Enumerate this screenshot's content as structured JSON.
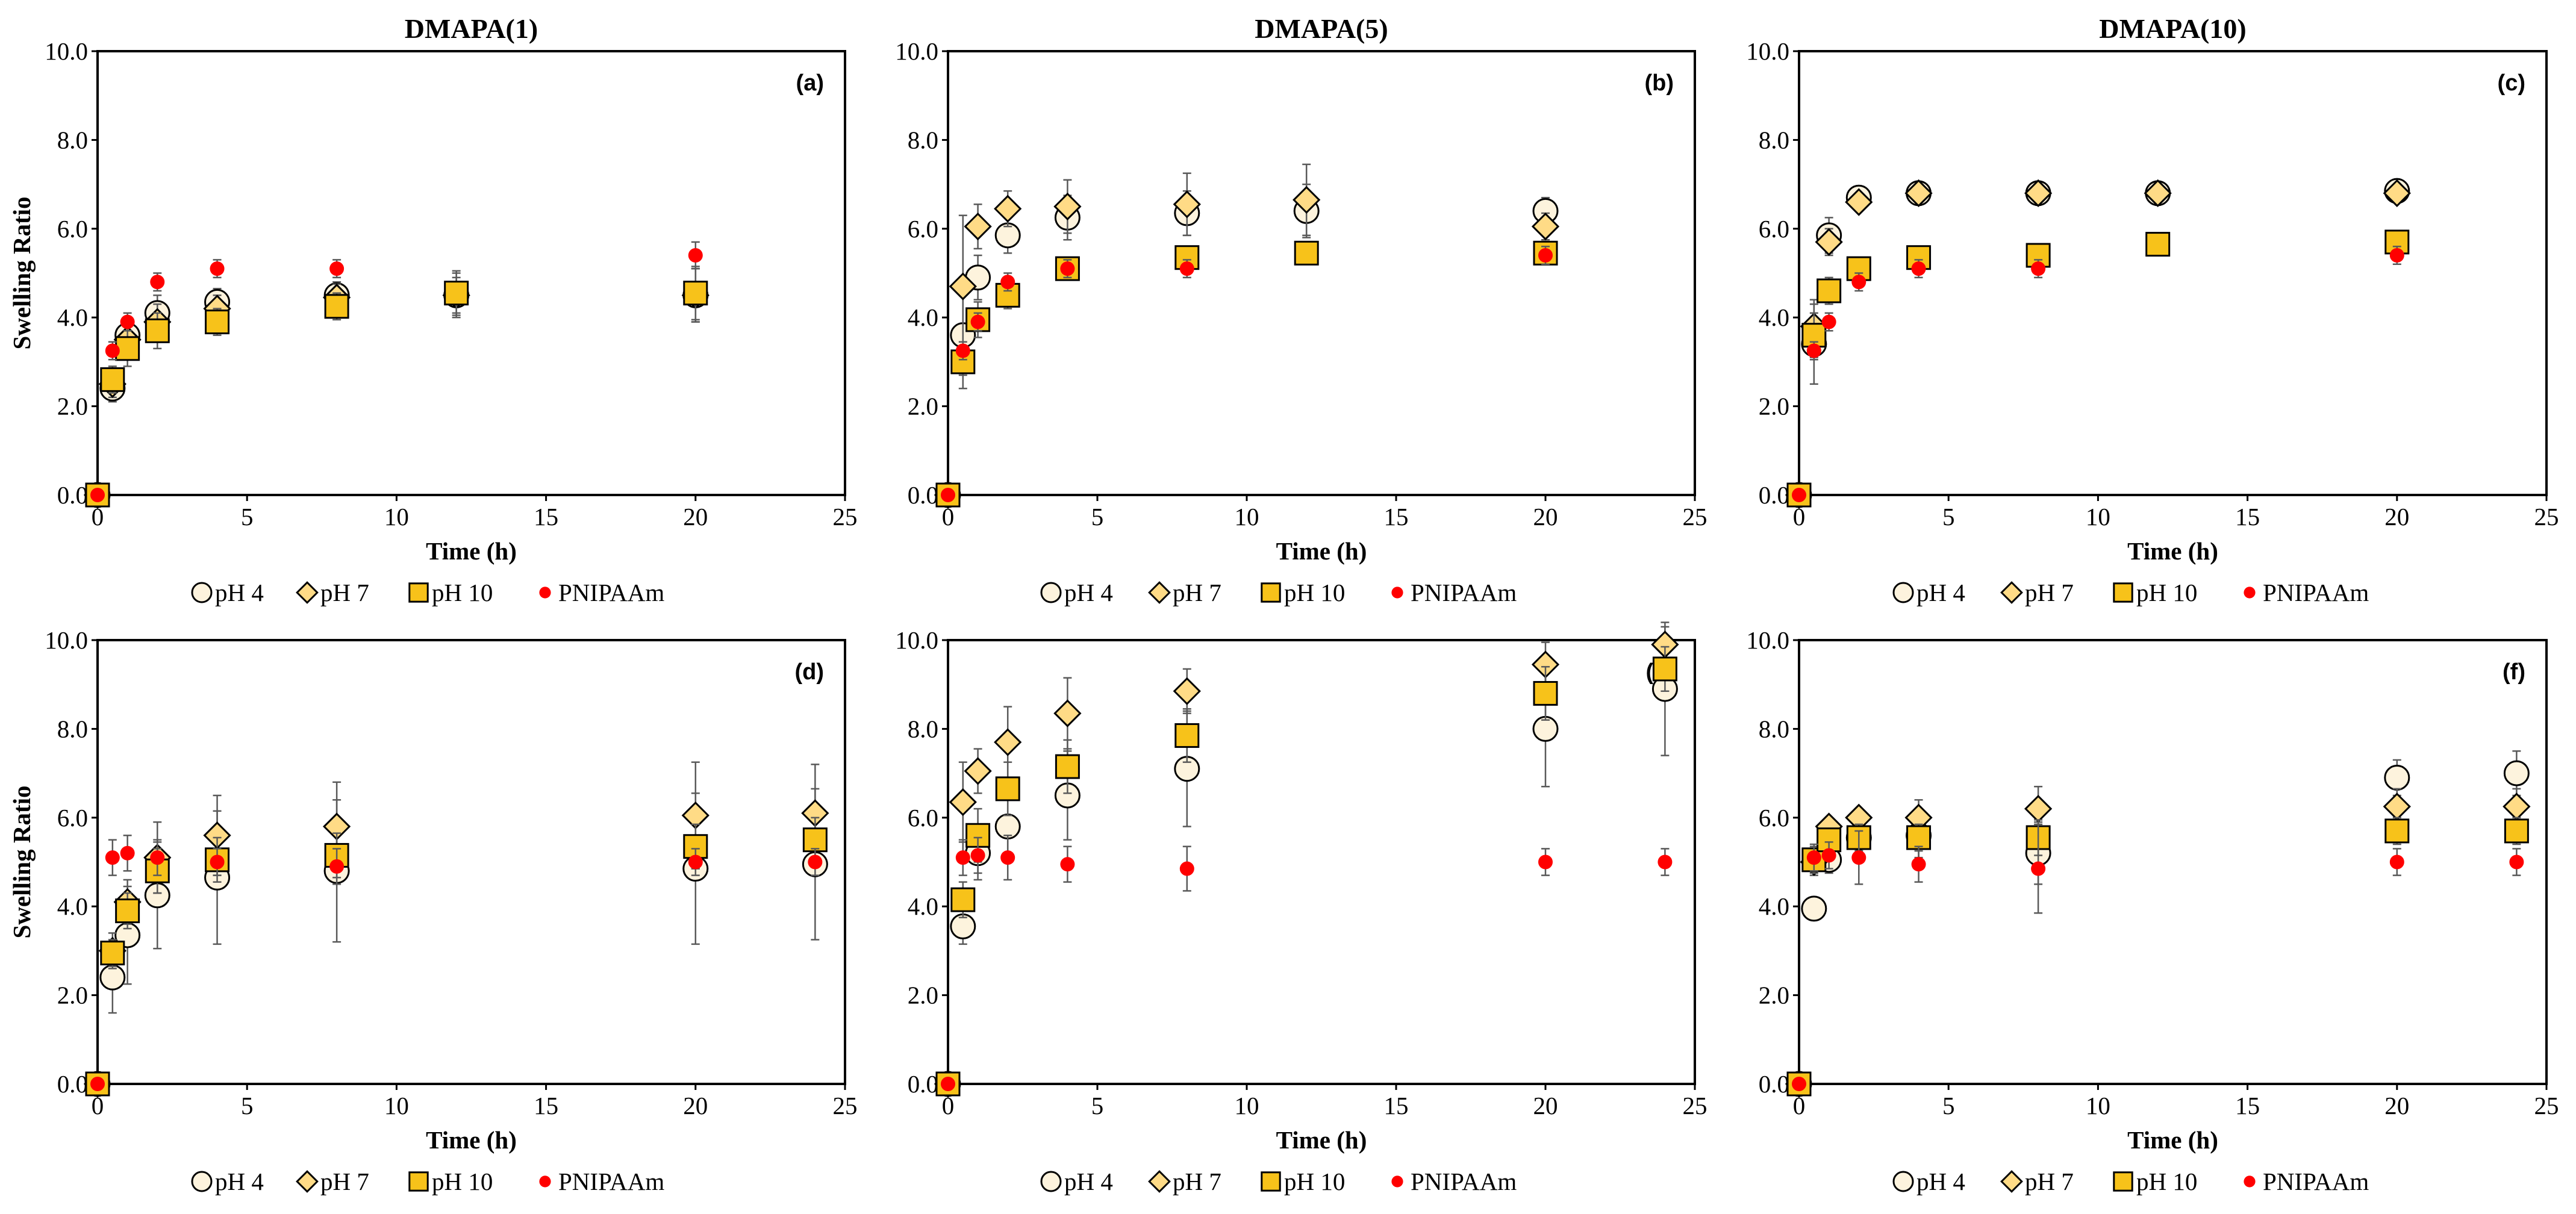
{
  "colors": {
    "pH 4": "#FDF3DD",
    "pH 7": "#FFDB86",
    "pH 10": "#F7C21A",
    "PNIPAAm": "#FF0000",
    "error_bar": "#595959",
    "axis": "#000000"
  },
  "chart_data": [
    {
      "type": "scatter",
      "panel_label": "(a)",
      "title": "DMAPA(1)",
      "xlabel": "Time (h)",
      "ylabel": "Swelling Ratio",
      "xlim": [
        0,
        25
      ],
      "ylim": [
        0,
        10
      ],
      "xticks": [
        "0",
        "5",
        "10",
        "15",
        "20",
        "25"
      ],
      "yticks": [
        "0.0",
        "2.0",
        "4.0",
        "6.0",
        "8.0",
        "10.0"
      ],
      "legend": [
        "pH 4",
        "pH 7",
        "pH 10",
        "PNIPAAm"
      ],
      "series": [
        {
          "name": "pH 4",
          "marker": "circle",
          "x": [
            0,
            0.5,
            1,
            2,
            4,
            8,
            12,
            20
          ],
          "y": [
            0,
            2.4,
            3.6,
            4.1,
            4.35,
            4.5,
            4.5,
            4.5
          ],
          "err": [
            0,
            0.3,
            0.4,
            0.4,
            0.3,
            0.3,
            0.5,
            0.6
          ]
        },
        {
          "name": "pH 7",
          "marker": "diamond",
          "x": [
            0,
            0.5,
            1,
            2,
            4,
            8,
            12,
            20
          ],
          "y": [
            0,
            2.5,
            3.5,
            3.9,
            4.2,
            4.45,
            4.5,
            4.5
          ],
          "err": [
            0,
            0.3,
            0.4,
            0.4,
            0.3,
            0.3,
            0.4,
            0.6
          ]
        },
        {
          "name": "pH 10",
          "marker": "square",
          "x": [
            0,
            0.5,
            1,
            2,
            4,
            8,
            12,
            20
          ],
          "y": [
            0,
            2.6,
            3.3,
            3.7,
            3.9,
            4.25,
            4.55,
            4.55
          ],
          "err": [
            0,
            0.3,
            0.4,
            0.4,
            0.3,
            0.3,
            0.5,
            0.6
          ]
        },
        {
          "name": "PNIPAAm",
          "marker": "dot",
          "x": [
            0,
            0.5,
            1,
            2,
            4,
            8,
            20
          ],
          "y": [
            0,
            3.25,
            3.9,
            4.8,
            5.1,
            5.1,
            5.4
          ],
          "err": [
            0,
            0.2,
            0.2,
            0.2,
            0.2,
            0.2,
            0.3
          ]
        }
      ]
    },
    {
      "type": "scatter",
      "panel_label": "(b)",
      "title": "DMAPA(5)",
      "xlabel": "Time (h)",
      "ylabel": "",
      "xlim": [
        0,
        25
      ],
      "ylim": [
        0,
        10
      ],
      "xticks": [
        "0",
        "5",
        "10",
        "15",
        "20",
        "25"
      ],
      "yticks": [
        "0.0",
        "2.0",
        "4.0",
        "6.0",
        "8.0",
        "10.0"
      ],
      "legend": [
        "pH 4",
        "pH 7",
        "pH 10",
        "PNIPAAm"
      ],
      "series": [
        {
          "name": "pH 4",
          "marker": "circle",
          "x": [
            0,
            0.5,
            1,
            2,
            4,
            8,
            12,
            20
          ],
          "y": [
            0,
            3.6,
            4.9,
            5.85,
            6.25,
            6.35,
            6.4,
            6.4
          ],
          "err": [
            0,
            1.2,
            0.5,
            0.4,
            0.5,
            0.5,
            0.6,
            0.3
          ]
        },
        {
          "name": "pH 7",
          "marker": "diamond",
          "x": [
            0,
            0.5,
            1,
            2,
            4,
            8,
            12,
            20
          ],
          "y": [
            0,
            4.7,
            6.05,
            6.45,
            6.5,
            6.55,
            6.65,
            6.05
          ],
          "err": [
            0,
            1.6,
            0.5,
            0.4,
            0.6,
            0.7,
            0.8,
            0.3
          ]
        },
        {
          "name": "pH 10",
          "marker": "square",
          "x": [
            0,
            0.5,
            1,
            2,
            4,
            8,
            12,
            20
          ],
          "y": [
            0,
            3.0,
            3.95,
            4.5,
            5.1,
            5.35,
            5.45,
            5.45
          ],
          "err": [
            0,
            0.3,
            0.4,
            0.3,
            0.2,
            0.2,
            0.2,
            0.2
          ]
        },
        {
          "name": "PNIPAAm",
          "marker": "dot",
          "x": [
            0,
            0.5,
            1,
            2,
            4,
            8,
            20
          ],
          "y": [
            0,
            3.25,
            3.9,
            4.8,
            5.1,
            5.1,
            5.4
          ],
          "err": [
            0,
            0.2,
            0.2,
            0.2,
            0.2,
            0.2,
            0.2
          ]
        }
      ]
    },
    {
      "type": "scatter",
      "panel_label": "(c)",
      "title": "DMAPA(10)",
      "xlabel": "Time (h)",
      "ylabel": "",
      "xlim": [
        0,
        25
      ],
      "ylim": [
        0,
        10
      ],
      "xticks": [
        "0",
        "5",
        "10",
        "15",
        "20",
        "25"
      ],
      "yticks": [
        "0.0",
        "2.0",
        "4.0",
        "6.0",
        "8.0",
        "10.0"
      ],
      "legend": [
        "pH 4",
        "pH 7",
        "pH 10",
        "PNIPAAm"
      ],
      "series": [
        {
          "name": "pH 4",
          "marker": "circle",
          "x": [
            0,
            0.5,
            1,
            2,
            4,
            8,
            12,
            20
          ],
          "y": [
            0,
            3.4,
            5.85,
            6.7,
            6.8,
            6.8,
            6.8,
            6.85
          ],
          "err": [
            0,
            0.9,
            0.4,
            0.2,
            0.1,
            0.1,
            0.1,
            0.1
          ]
        },
        {
          "name": "pH 7",
          "marker": "diamond",
          "x": [
            0,
            0.5,
            1,
            2,
            4,
            8,
            12,
            20
          ],
          "y": [
            0,
            3.8,
            5.7,
            6.6,
            6.8,
            6.8,
            6.8,
            6.8
          ],
          "err": [
            0,
            0.6,
            0.3,
            0.2,
            0.1,
            0.1,
            0.1,
            0.1
          ]
        },
        {
          "name": "pH 10",
          "marker": "square",
          "x": [
            0,
            0.5,
            1,
            2,
            4,
            8,
            12,
            20
          ],
          "y": [
            0,
            3.6,
            4.6,
            5.1,
            5.35,
            5.4,
            5.65,
            5.7
          ],
          "err": [
            0,
            0.5,
            0.3,
            0.2,
            0.1,
            0.1,
            0.1,
            0.1
          ]
        },
        {
          "name": "PNIPAAm",
          "marker": "dot",
          "x": [
            0,
            0.5,
            1,
            2,
            4,
            8,
            20
          ],
          "y": [
            0,
            3.25,
            3.9,
            4.8,
            5.1,
            5.1,
            5.4
          ],
          "err": [
            0,
            0.2,
            0.2,
            0.2,
            0.2,
            0.2,
            0.2
          ]
        }
      ]
    },
    {
      "type": "scatter",
      "panel_label": "(d)",
      "title": "",
      "xlabel": "Time (h)",
      "ylabel": "Swelling Ratio",
      "xlim": [
        0,
        25
      ],
      "ylim": [
        0,
        10
      ],
      "xticks": [
        "0",
        "5",
        "10",
        "15",
        "20",
        "25"
      ],
      "yticks": [
        "0.0",
        "2.0",
        "4.0",
        "6.0",
        "8.0",
        "10.0"
      ],
      "legend": [
        "pH 4",
        "pH 7",
        "pH 10",
        "PNIPAAm"
      ],
      "series": [
        {
          "name": "pH 4",
          "marker": "circle",
          "x": [
            0,
            0.5,
            1,
            2,
            4,
            8,
            20,
            24
          ],
          "y": [
            0,
            2.4,
            3.35,
            4.25,
            4.65,
            4.8,
            4.85,
            4.95
          ],
          "err": [
            0,
            0.8,
            1.1,
            1.2,
            1.5,
            1.6,
            1.7,
            1.7
          ]
        },
        {
          "name": "pH 7",
          "marker": "diamond",
          "x": [
            0,
            0.5,
            1,
            2,
            4,
            8,
            20,
            24
          ],
          "y": [
            0,
            3.0,
            4.1,
            5.1,
            5.6,
            5.8,
            6.05,
            6.1
          ],
          "err": [
            0,
            0.4,
            0.5,
            0.8,
            0.9,
            1.0,
            1.2,
            1.1
          ]
        },
        {
          "name": "pH 10",
          "marker": "square",
          "x": [
            0,
            0.5,
            1,
            2,
            4,
            8,
            20,
            24
          ],
          "y": [
            0,
            2.95,
            3.9,
            4.8,
            5.05,
            5.15,
            5.35,
            5.5
          ],
          "err": [
            0,
            0.3,
            0.4,
            0.5,
            0.5,
            0.5,
            0.5,
            0.5
          ]
        },
        {
          "name": "PNIPAAm",
          "marker": "dot",
          "x": [
            0,
            0.5,
            1,
            2,
            4,
            8,
            20,
            24
          ],
          "y": [
            0,
            5.1,
            5.2,
            5.1,
            5.0,
            4.9,
            5.0,
            5.0
          ],
          "err": [
            0,
            0.4,
            0.4,
            0.4,
            0.3,
            0.4,
            0.3,
            0.3
          ]
        }
      ]
    },
    {
      "type": "scatter",
      "panel_label": "(e)",
      "title": "",
      "xlabel": "Time (h)",
      "ylabel": "",
      "xlim": [
        0,
        25
      ],
      "ylim": [
        0,
        10
      ],
      "xticks": [
        "0",
        "5",
        "10",
        "15",
        "20",
        "25"
      ],
      "yticks": [
        "0.0",
        "2.0",
        "4.0",
        "6.0",
        "8.0",
        "10.0"
      ],
      "legend": [
        "pH 4",
        "pH 7",
        "pH 10",
        "PNIPAAm"
      ],
      "series": [
        {
          "name": "pH 4",
          "marker": "circle",
          "x": [
            0,
            0.5,
            1,
            2,
            4,
            8,
            20,
            24
          ],
          "y": [
            0,
            3.55,
            5.2,
            5.8,
            6.5,
            7.1,
            8.0,
            8.9
          ],
          "err": [
            0,
            0.4,
            0.6,
            0.7,
            1.0,
            1.3,
            1.3,
            1.5
          ]
        },
        {
          "name": "pH 7",
          "marker": "diamond",
          "x": [
            0,
            0.5,
            1,
            2,
            4,
            8,
            20,
            24
          ],
          "y": [
            0,
            6.35,
            7.05,
            7.7,
            8.35,
            8.85,
            9.45,
            9.9
          ],
          "err": [
            0,
            0.9,
            0.5,
            0.8,
            0.8,
            0.5,
            0.5,
            0.4
          ]
        },
        {
          "name": "pH 10",
          "marker": "square",
          "x": [
            0,
            0.5,
            1,
            2,
            4,
            8,
            20,
            24
          ],
          "y": [
            0,
            4.15,
            5.6,
            6.65,
            7.15,
            7.85,
            8.8,
            9.35
          ],
          "err": [
            0,
            0.4,
            0.6,
            0.6,
            0.6,
            0.6,
            0.6,
            0.5
          ]
        },
        {
          "name": "PNIPAAm",
          "marker": "dot",
          "x": [
            0,
            0.5,
            1,
            2,
            4,
            8,
            20,
            24
          ],
          "y": [
            0,
            5.1,
            5.15,
            5.1,
            4.95,
            4.85,
            5.0,
            5.0
          ],
          "err": [
            0,
            0.4,
            0.4,
            0.5,
            0.4,
            0.5,
            0.3,
            0.3
          ]
        }
      ]
    },
    {
      "type": "scatter",
      "panel_label": "(f)",
      "title": "",
      "xlabel": "Time (h)",
      "ylabel": "",
      "xlim": [
        0,
        25
      ],
      "ylim": [
        0,
        10
      ],
      "xticks": [
        "0",
        "5",
        "10",
        "15",
        "20",
        "25"
      ],
      "yticks": [
        "0.0",
        "2.0",
        "4.0",
        "6.0",
        "8.0",
        "10.0"
      ],
      "legend": [
        "pH 4",
        "pH 7",
        "pH 10",
        "PNIPAAm"
      ],
      "series": [
        {
          "name": "pH 4",
          "marker": "circle",
          "x": [
            0,
            0.5,
            1,
            2,
            4,
            8,
            20,
            24
          ],
          "y": [
            0,
            3.95,
            5.05,
            5.55,
            5.6,
            5.2,
            6.9,
            7.0
          ],
          "err": [
            0,
            0.2,
            0.3,
            0.4,
            0.5,
            0.7,
            0.4,
            0.5
          ]
        },
        {
          "name": "pH 7",
          "marker": "diamond",
          "x": [
            0,
            0.5,
            1,
            2,
            4,
            8,
            20,
            24
          ],
          "y": [
            0,
            5.0,
            5.8,
            6.0,
            6.0,
            6.2,
            6.25,
            6.25
          ],
          "err": [
            0,
            0.3,
            0.2,
            0.2,
            0.4,
            0.5,
            0.4,
            0.4
          ]
        },
        {
          "name": "pH 10",
          "marker": "square",
          "x": [
            0,
            0.5,
            1,
            2,
            4,
            8,
            20,
            24
          ],
          "y": [
            0,
            5.05,
            5.5,
            5.55,
            5.55,
            5.55,
            5.7,
            5.7
          ],
          "err": [
            0,
            0.3,
            0.2,
            0.3,
            0.3,
            0.4,
            0.3,
            0.3
          ]
        },
        {
          "name": "PNIPAAm",
          "marker": "dot",
          "x": [
            0,
            0.5,
            1,
            2,
            4,
            8,
            20,
            24
          ],
          "y": [
            0,
            5.1,
            5.15,
            5.1,
            4.95,
            4.85,
            5.0,
            5.0
          ],
          "err": [
            0,
            0.3,
            0.3,
            0.6,
            0.4,
            1.0,
            0.3,
            0.3
          ]
        }
      ]
    }
  ]
}
